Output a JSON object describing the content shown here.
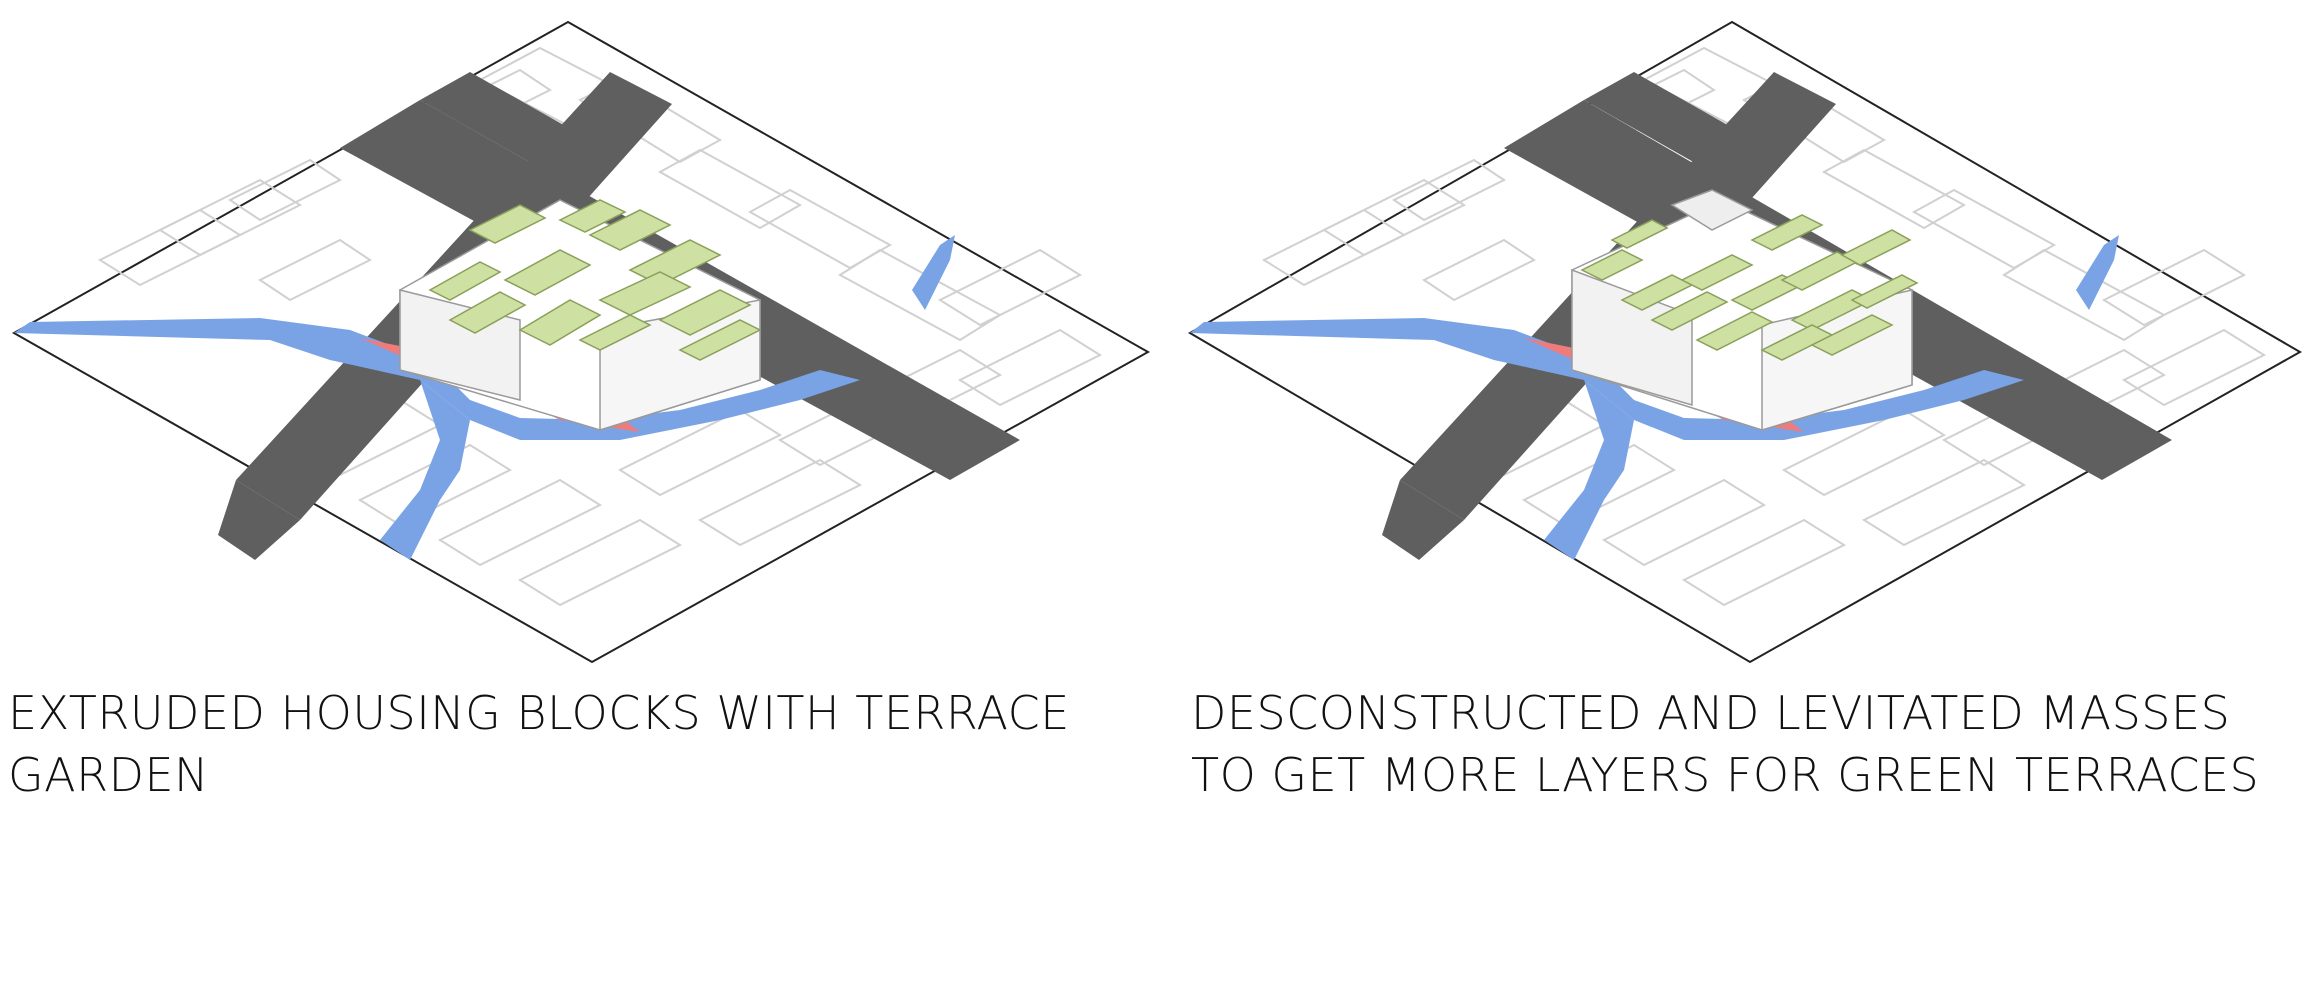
{
  "diagrams": [
    {
      "caption": "EXTRUDED HOUSING BLOCKS WITH TERRACE GARDEN",
      "variant": "extruded"
    },
    {
      "caption": "DESCONSTRUCTED AND LEVITATED MASSES TO GET MORE LAYERS FOR GREEN TERRACES",
      "variant": "levitated"
    }
  ],
  "colors": {
    "road": "#5f5f5f",
    "water": "#7aa3e6",
    "plaza": "#ef7b7b",
    "terrace": "#cfe0a3",
    "building": "#ffffff",
    "outline": "#cfcfcf",
    "ground": "#ffffff"
  }
}
